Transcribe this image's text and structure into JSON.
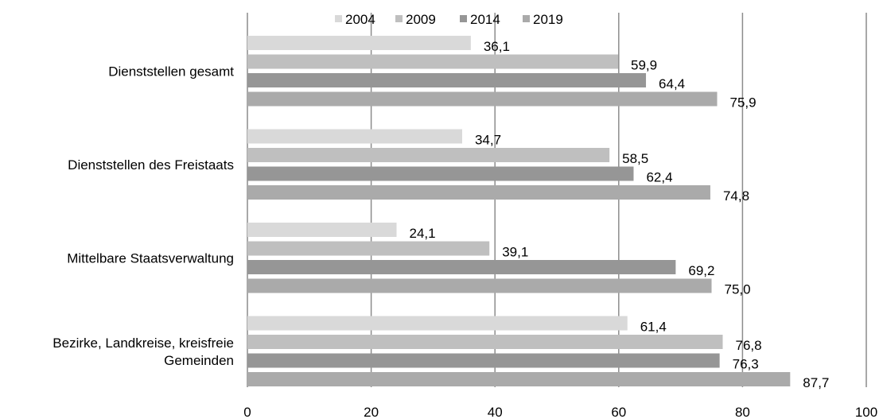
{
  "chart_data": {
    "type": "bar",
    "orientation": "horizontal",
    "categories": [
      [
        "Dienststellen gesamt"
      ],
      [
        "Dienststellen des Freistaats"
      ],
      [
        "Mittelbare Staatsverwaltung"
      ],
      [
        "Bezirke, Landkreise, kreisfreie",
        "Gemeinden"
      ]
    ],
    "series": [
      {
        "name": "2004",
        "color": "#d9d9d9",
        "values": [
          36.1,
          34.7,
          24.1,
          61.4
        ],
        "labels": [
          "36,1",
          "34,7",
          "24,1",
          "61,4"
        ]
      },
      {
        "name": "2009",
        "color": "#bfbfbf",
        "values": [
          59.9,
          58.5,
          39.1,
          76.8
        ],
        "labels": [
          "59,9",
          "58,5",
          "39,1",
          "76,8"
        ]
      },
      {
        "name": "2014",
        "color": "#969696",
        "values": [
          64.4,
          62.4,
          69.2,
          76.3
        ],
        "labels": [
          "64,4",
          "62,4",
          "69,2",
          "76,3"
        ]
      },
      {
        "name": "2019",
        "color": "#aaaaaa",
        "values": [
          75.9,
          74.8,
          75.0,
          87.7
        ],
        "labels": [
          "75,9",
          "74,8",
          "75,0",
          "87,7"
        ]
      }
    ],
    "x_ticks": [
      "0",
      "20",
      "40",
      "60",
      "80",
      "100"
    ],
    "xlim": [
      0,
      100
    ],
    "grid": "vertical",
    "legend": "top-center"
  }
}
